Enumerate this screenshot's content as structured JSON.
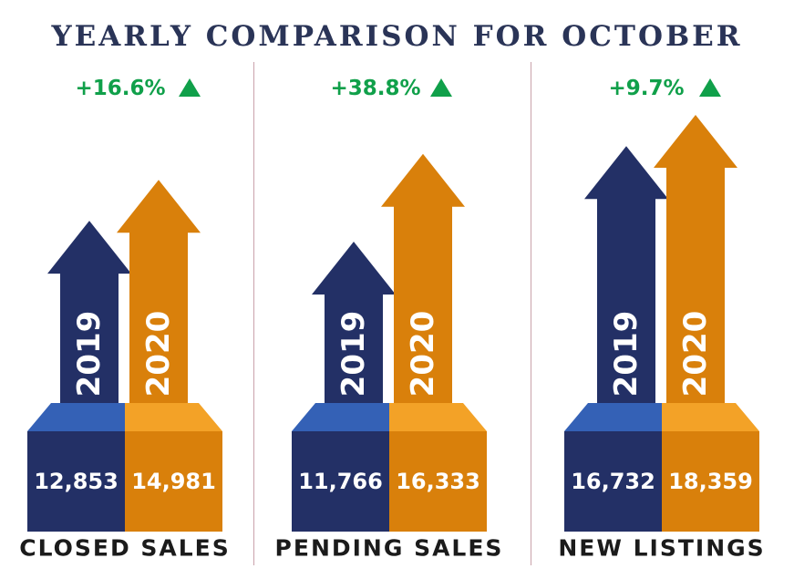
{
  "title": "YEARLY COMPARISON FOR OCTOBER",
  "colors": {
    "navy": "#233066",
    "navy_top": "#3461b6",
    "orange": "#d9800b",
    "orange_top": "#f3a227",
    "green": "#10a04a",
    "title": "#2a3457",
    "divider": "#c9a2ab"
  },
  "chart_data": {
    "type": "bar",
    "categories": [
      "CLOSED SALES",
      "PENDING SALES",
      "NEW LISTINGS"
    ],
    "series": [
      {
        "name": "2019",
        "values": [
          12853,
          11766,
          16732
        ],
        "value_labels": [
          "12,853",
          "11,766",
          "16,732"
        ]
      },
      {
        "name": "2020",
        "values": [
          14981,
          16333,
          18359
        ],
        "value_labels": [
          "14,981",
          "16,333",
          "18,359"
        ]
      }
    ],
    "changes": [
      "+16.6%",
      "+38.8%",
      "+9.7%"
    ],
    "change_direction": "up",
    "title": "YEARLY COMPARISON FOR OCTOBER"
  }
}
